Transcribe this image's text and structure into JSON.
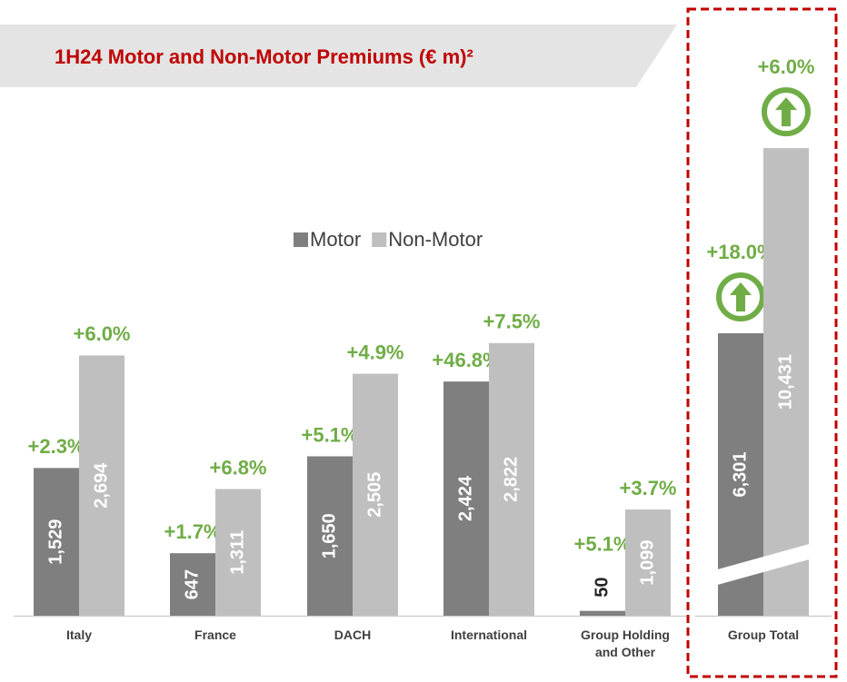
{
  "chart_data": [
    {
      "type": "bar",
      "title": "1H24 Motor and Non-Motor Premiums (€ m)²",
      "categories": [
        "Italy",
        "France",
        "DACH",
        "International",
        "Group Holding and Other"
      ],
      "ylim": [
        0,
        5800
      ],
      "legend": "top",
      "series": [
        {
          "name": "Motor",
          "color": "#7f7f7f",
          "values": [
            1529,
            647,
            1650,
            2424,
            50
          ],
          "value_labels": [
            "1,529",
            "647",
            "1,650",
            "2,424",
            "50"
          ],
          "growth_labels": [
            "+2.3%",
            "+1.7%",
            "+5.1%",
            "+46.8%",
            "+5.1%"
          ]
        },
        {
          "name": "Non-Motor",
          "color": "#bfbfbf",
          "values": [
            2694,
            1311,
            2505,
            2822,
            1099
          ],
          "value_labels": [
            "2,694",
            "1,311",
            "2,505",
            "2,822",
            "1,099"
          ],
          "growth_labels": [
            "+6.0%",
            "+6.8%",
            "+4.9%",
            "+7.5%",
            "+3.7%"
          ]
        }
      ]
    },
    {
      "type": "bar",
      "categories": [
        "Group Total"
      ],
      "ylim": [
        0,
        12500
      ],
      "series": [
        {
          "color": "#7f7f7f",
          "values": [
            6301
          ],
          "value_labels": [
            "6,301"
          ],
          "growth_labels": [
            "+18.0%"
          ]
        },
        {
          "color": "#bfbfbf",
          "values": [
            10431
          ],
          "value_labels": [
            "10,431"
          ],
          "growth_labels": [
            "+6.0%"
          ]
        }
      ]
    }
  ]
}
